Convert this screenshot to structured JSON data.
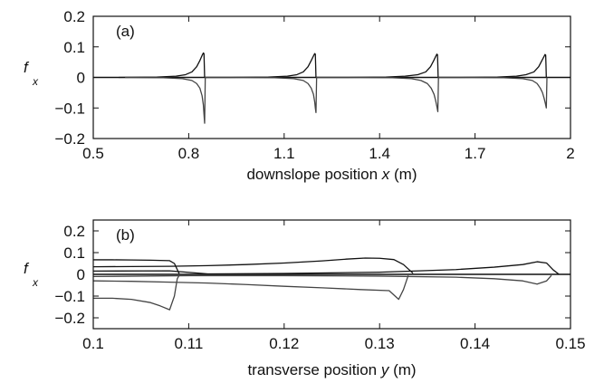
{
  "chart_data": [
    {
      "panel": "(a)",
      "type": "line",
      "xlabel_prefix": "downslope position",
      "xlabel_var": "x",
      "xlabel_unit": "(m)",
      "ylabel": "f",
      "ylabel_sub": "x",
      "xlim": [
        0.5,
        2.0
      ],
      "ylim": [
        -0.2,
        0.2
      ],
      "xticks": [
        0.5,
        0.8,
        1.1,
        1.4,
        1.7,
        2.0
      ],
      "xtick_labels": [
        "0.5",
        "0.8",
        "1.1",
        "1.4",
        "1.7",
        "2"
      ],
      "yticks": [
        -0.2,
        -0.1,
        0,
        0.1,
        0.2
      ],
      "ytick_labels": [
        "−0.2",
        "−0.1",
        "0",
        "0.1",
        "0.2"
      ],
      "zero_line": true,
      "series": [
        {
          "color": "#111111",
          "points": [
            [
              0.58,
              0.0
            ],
            [
              0.7,
              0.001
            ],
            [
              0.76,
              0.004
            ],
            [
              0.79,
              0.009
            ],
            [
              0.81,
              0.018
            ],
            [
              0.825,
              0.035
            ],
            [
              0.835,
              0.055
            ],
            [
              0.842,
              0.072
            ],
            [
              0.846,
              0.08
            ],
            [
              0.848,
              0.078
            ],
            [
              0.849,
              0.04
            ],
            [
              0.85,
              0.0
            ],
            [
              0.93,
              0.0
            ],
            [
              1.05,
              0.001
            ],
            [
              1.11,
              0.004
            ],
            [
              1.14,
              0.009
            ],
            [
              1.16,
              0.018
            ],
            [
              1.175,
              0.035
            ],
            [
              1.185,
              0.055
            ],
            [
              1.192,
              0.07
            ],
            [
              1.196,
              0.078
            ],
            [
              1.198,
              0.076
            ],
            [
              1.199,
              0.04
            ],
            [
              1.2,
              0.0
            ],
            [
              1.3,
              0.0
            ],
            [
              1.42,
              0.001
            ],
            [
              1.48,
              0.004
            ],
            [
              1.52,
              0.009
            ],
            [
              1.545,
              0.018
            ],
            [
              1.56,
              0.035
            ],
            [
              1.57,
              0.055
            ],
            [
              1.576,
              0.068
            ],
            [
              1.58,
              0.076
            ],
            [
              1.582,
              0.074
            ],
            [
              1.583,
              0.04
            ],
            [
              1.584,
              0.0
            ],
            [
              1.65,
              0.0
            ],
            [
              1.77,
              0.001
            ],
            [
              1.83,
              0.004
            ],
            [
              1.86,
              0.009
            ],
            [
              1.885,
              0.018
            ],
            [
              1.9,
              0.035
            ],
            [
              1.91,
              0.055
            ],
            [
              1.916,
              0.067
            ],
            [
              1.92,
              0.075
            ],
            [
              1.922,
              0.073
            ],
            [
              1.923,
              0.04
            ],
            [
              1.924,
              0.0
            ]
          ]
        },
        {
          "color": "#444444",
          "points": [
            [
              0.6,
              0.0
            ],
            [
              0.72,
              -0.001
            ],
            [
              0.78,
              -0.004
            ],
            [
              0.81,
              -0.01
            ],
            [
              0.825,
              -0.02
            ],
            [
              0.835,
              -0.035
            ],
            [
              0.842,
              -0.06
            ],
            [
              0.846,
              -0.09
            ],
            [
              0.848,
              -0.12
            ],
            [
              0.85,
              -0.15
            ],
            [
              0.851,
              -0.08
            ],
            [
              0.852,
              0.0
            ],
            [
              0.95,
              0.0
            ],
            [
              1.07,
              -0.001
            ],
            [
              1.13,
              -0.004
            ],
            [
              1.16,
              -0.01
            ],
            [
              1.175,
              -0.02
            ],
            [
              1.185,
              -0.035
            ],
            [
              1.192,
              -0.055
            ],
            [
              1.196,
              -0.08
            ],
            [
              1.198,
              -0.1
            ],
            [
              1.2,
              -0.115
            ],
            [
              1.201,
              -0.06
            ],
            [
              1.202,
              0.0
            ],
            [
              1.32,
              0.0
            ],
            [
              1.44,
              -0.001
            ],
            [
              1.5,
              -0.004
            ],
            [
              1.53,
              -0.01
            ],
            [
              1.55,
              -0.02
            ],
            [
              1.562,
              -0.035
            ],
            [
              1.571,
              -0.055
            ],
            [
              1.576,
              -0.075
            ],
            [
              1.58,
              -0.095
            ],
            [
              1.583,
              -0.112
            ],
            [
              1.584,
              -0.06
            ],
            [
              1.585,
              0.0
            ],
            [
              1.67,
              0.0
            ],
            [
              1.79,
              -0.001
            ],
            [
              1.85,
              -0.004
            ],
            [
              1.88,
              -0.01
            ],
            [
              1.895,
              -0.02
            ],
            [
              1.905,
              -0.035
            ],
            [
              1.912,
              -0.05
            ],
            [
              1.917,
              -0.068
            ],
            [
              1.921,
              -0.085
            ],
            [
              1.924,
              -0.1
            ],
            [
              1.925,
              -0.05
            ],
            [
              1.926,
              0.0
            ]
          ]
        }
      ]
    },
    {
      "panel": "(b)",
      "type": "line",
      "xlabel_prefix": "transverse position",
      "xlabel_var": "y",
      "xlabel_unit": "(m)",
      "ylabel": "f",
      "ylabel_sub": "x",
      "xlim": [
        0.1,
        0.15
      ],
      "ylim": [
        -0.25,
        0.25
      ],
      "xticks": [
        0.1,
        0.11,
        0.12,
        0.13,
        0.14,
        0.15
      ],
      "xtick_labels": [
        "0.1",
        "0.11",
        "0.12",
        "0.13",
        "0.14",
        "0.15"
      ],
      "yticks": [
        -0.2,
        -0.1,
        0,
        0.1,
        0.2
      ],
      "ytick_labels": [
        "−0.2",
        "−0.1",
        "0",
        "0.1",
        "0.2"
      ],
      "zero_line": true,
      "series": [
        {
          "color": "#111111",
          "points": [
            [
              0.1,
              0.067
            ],
            [
              0.102,
              0.067
            ],
            [
              0.104,
              0.066
            ],
            [
              0.106,
              0.065
            ],
            [
              0.108,
              0.063
            ],
            [
              0.1085,
              0.05
            ],
            [
              0.109,
              0.003
            ]
          ]
        },
        {
          "color": "#111111",
          "points": [
            [
              0.1,
              0.035
            ],
            [
              0.104,
              0.036
            ],
            [
              0.108,
              0.037
            ],
            [
              0.112,
              0.04
            ],
            [
              0.116,
              0.045
            ],
            [
              0.12,
              0.052
            ],
            [
              0.124,
              0.062
            ],
            [
              0.1265,
              0.07
            ],
            [
              0.1285,
              0.075
            ],
            [
              0.13,
              0.074
            ],
            [
              0.1315,
              0.068
            ],
            [
              0.1325,
              0.045
            ],
            [
              0.1335,
              0.005
            ]
          ]
        },
        {
          "color": "#111111",
          "points": [
            [
              0.1,
              0.015
            ],
            [
              0.108,
              0.016
            ],
            [
              0.112,
              0.002
            ],
            [
              0.12,
              0.004
            ],
            [
              0.13,
              0.01
            ],
            [
              0.138,
              0.022
            ],
            [
              0.142,
              0.033
            ],
            [
              0.145,
              0.045
            ],
            [
              0.1465,
              0.058
            ],
            [
              0.1475,
              0.052
            ],
            [
              0.1482,
              0.02
            ],
            [
              0.1488,
              0.0
            ]
          ]
        },
        {
          "color": "#444444",
          "points": [
            [
              0.1,
              -0.11
            ],
            [
              0.102,
              -0.11
            ],
            [
              0.104,
              -0.115
            ],
            [
              0.106,
              -0.13
            ],
            [
              0.107,
              -0.145
            ],
            [
              0.108,
              -0.163
            ],
            [
              0.1085,
              -0.1
            ],
            [
              0.1088,
              -0.02
            ],
            [
              0.109,
              -0.005
            ]
          ]
        },
        {
          "color": "#444444",
          "points": [
            [
              0.1,
              -0.03
            ],
            [
              0.104,
              -0.032
            ],
            [
              0.108,
              -0.036
            ],
            [
              0.112,
              -0.04
            ],
            [
              0.116,
              -0.047
            ],
            [
              0.12,
              -0.055
            ],
            [
              0.124,
              -0.062
            ],
            [
              0.128,
              -0.07
            ],
            [
              0.131,
              -0.075
            ],
            [
              0.132,
              -0.115
            ],
            [
              0.1325,
              -0.07
            ],
            [
              0.133,
              -0.005
            ]
          ]
        },
        {
          "color": "#444444",
          "points": [
            [
              0.1,
              -0.01
            ],
            [
              0.11,
              -0.006
            ],
            [
              0.12,
              -0.006
            ],
            [
              0.13,
              -0.008
            ],
            [
              0.138,
              -0.013
            ],
            [
              0.142,
              -0.02
            ],
            [
              0.145,
              -0.03
            ],
            [
              0.1465,
              -0.045
            ],
            [
              0.1475,
              -0.03
            ],
            [
              0.148,
              -0.005
            ]
          ]
        }
      ]
    }
  ]
}
